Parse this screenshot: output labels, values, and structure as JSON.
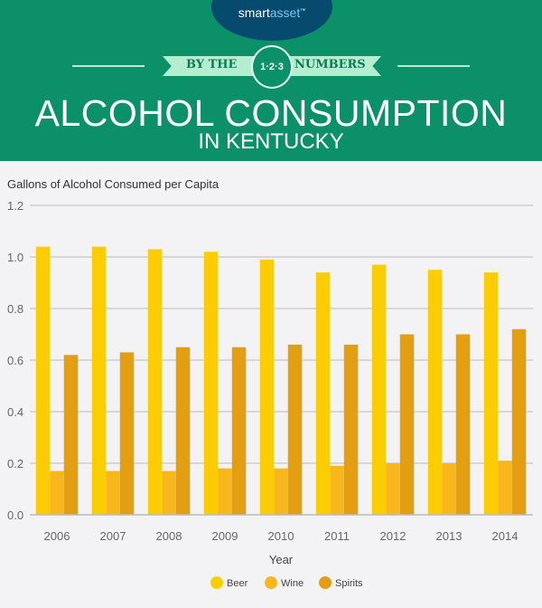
{
  "header": {
    "logo": {
      "part1": "smart",
      "part2": "asset",
      "tm": "™"
    },
    "ribbon_left": "BY THE",
    "ribbon_badge": "1·2·3",
    "ribbon_right": "NUMBERS",
    "title": "ALCOHOL CONSUMPTION",
    "subtitle": "IN KENTUCKY"
  },
  "chart_data": {
    "type": "bar",
    "ylabel": "Gallons of Alcohol Consumed per Capita",
    "xlabel": "Year",
    "ylim": [
      0,
      1.2
    ],
    "yticks": [
      "0.0",
      "0.2",
      "0.4",
      "0.6",
      "0.8",
      "1.0",
      "1.2"
    ],
    "grid": true,
    "legend_position": "bottom",
    "categories": [
      "2006",
      "2007",
      "2008",
      "2009",
      "2010",
      "2011",
      "2012",
      "2013",
      "2014"
    ],
    "series": [
      {
        "name": "Beer",
        "color": "#fccd05",
        "values": [
          1.04,
          1.04,
          1.03,
          1.02,
          0.99,
          0.94,
          0.97,
          0.95,
          0.94
        ]
      },
      {
        "name": "Wine",
        "color": "#f8b71c",
        "values": [
          0.17,
          0.17,
          0.17,
          0.18,
          0.18,
          0.19,
          0.2,
          0.2,
          0.21
        ]
      },
      {
        "name": "Spirits",
        "color": "#e49e12",
        "values": [
          0.62,
          0.63,
          0.65,
          0.65,
          0.66,
          0.66,
          0.7,
          0.7,
          0.72
        ]
      }
    ]
  }
}
